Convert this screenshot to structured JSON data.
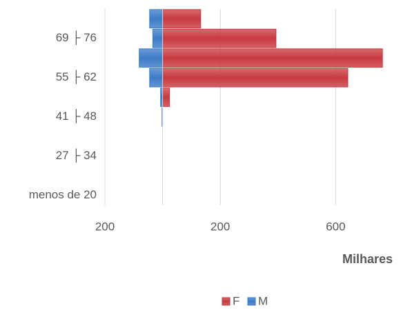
{
  "chart_data": {
    "type": "pyramid",
    "categories": [
      "menos de 20",
      null,
      "27 ├ 34",
      null,
      "41 ├ 48",
      null,
      "55 ├ 62",
      null,
      "69 ├ 76",
      null
    ],
    "series": [
      {
        "name": "F",
        "color": "#c8393f",
        "values": [
          0,
          0,
          0,
          0,
          0,
          24,
          642,
          762,
          393,
          132
        ]
      },
      {
        "name": "M",
        "color": "#3b7bc8",
        "values": [
          0,
          0,
          0,
          0,
          -2,
          -7,
          -45,
          -81,
          -34,
          -45
        ]
      }
    ],
    "xlim": [
      -200,
      800
    ],
    "xticks": [
      {
        "value": -200,
        "label": "200"
      },
      200,
      600
    ],
    "xlabel": "Milhares",
    "grid": true,
    "legend": "bottom"
  }
}
